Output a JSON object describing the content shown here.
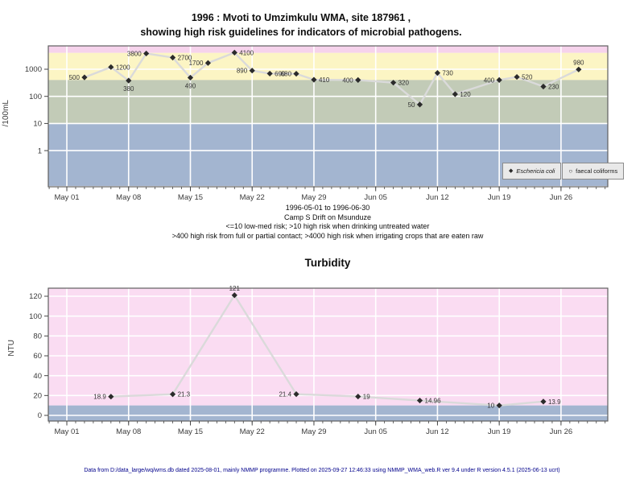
{
  "title": {
    "line1": "1996 : Mvoti to Umzimkulu WMA, site 187961 ,",
    "line2": "showing high risk guidelines for indicators of microbial pathogens."
  },
  "caption": {
    "date_range": "1996-05-01 to 1996-06-30",
    "site": "Camp S Drift on Msunduze",
    "guideline1": "<=10 low-med risk; >10 high risk when drinking untreated water",
    "guideline2": ">400 high risk from full or partial contact; >4000 high risk when irrigating crops that are eaten raw"
  },
  "footer": "Data from D:/data_large/wq/wms.db dated 2025-08-01, mainly NMMP programme. Plotted on 2025-09-27 12:46:33 using NMMP_WMA_web.R ver 9.4 under R version 4.5.1 (2025-06-13 ucrt)",
  "legend": {
    "items": [
      {
        "marker": "filled-diamond",
        "label": "Eschericia coli"
      },
      {
        "marker": "open-circle",
        "label": "faecal coliforms"
      }
    ]
  },
  "colors": {
    "band_pink": "#f6d3ec",
    "band_yellow": "#fcf5c4",
    "band_green": "#c2cbb7",
    "band_blue": "#a3b5d0",
    "turbidity_pink": "#fadcf2",
    "grid": "#ffffff",
    "line": "#dadada",
    "point": "#2b2b2b",
    "axis": "#5f5f5f",
    "tick_text": "#3a3a3a",
    "label_text": "#333333",
    "footer_text": "#00008b"
  },
  "chart_data": [
    {
      "type": "line",
      "name": "microbial-indicators",
      "title": "",
      "xlabel": "",
      "ylabel": "/100mL",
      "yscale": "log",
      "ylim": [
        0.05,
        7200
      ],
      "yticks": [
        1,
        10,
        100,
        1000
      ],
      "xlim_days": [
        -2.1,
        61.3
      ],
      "minor_ticks": "daily",
      "legend_position": "bottom-right",
      "grid": true,
      "xticks": [
        {
          "day": 0,
          "label": "May 01"
        },
        {
          "day": 7,
          "label": "May 08"
        },
        {
          "day": 14,
          "label": "May 15"
        },
        {
          "day": 21,
          "label": "May 22"
        },
        {
          "day": 28,
          "label": "May 29"
        },
        {
          "day": 35,
          "label": "Jun 05"
        },
        {
          "day": 42,
          "label": "Jun 12"
        },
        {
          "day": 49,
          "label": "Jun 19"
        },
        {
          "day": 56,
          "label": "Jun 26"
        }
      ],
      "bands": [
        {
          "from": 4000,
          "to": 7200,
          "color_key": "band_pink"
        },
        {
          "from": 400,
          "to": 4000,
          "color_key": "band_yellow"
        },
        {
          "from": 10,
          "to": 400,
          "color_key": "band_green"
        },
        {
          "from": 0.05,
          "to": 10,
          "color_key": "band_blue"
        }
      ],
      "series": [
        {
          "name": "Eschericia coli",
          "marker": "filled-diamond",
          "points": [
            {
              "day": 2,
              "value": 500,
              "label": "500",
              "label_side": "left"
            },
            {
              "day": 5,
              "value": 1200,
              "label": "1200",
              "label_side": "right"
            },
            {
              "day": 7,
              "value": 380,
              "label": "380",
              "label_side": "below"
            },
            {
              "day": 9,
              "value": 3800,
              "label": "3800",
              "label_side": "left"
            },
            {
              "day": 12,
              "value": 2700,
              "label": "2700",
              "label_side": "right"
            },
            {
              "day": 14,
              "value": 490,
              "label": "490",
              "label_side": "below"
            },
            {
              "day": 16,
              "value": 1700,
              "label": "1700",
              "label_side": "left"
            },
            {
              "day": 19,
              "value": 4100,
              "label": "4100",
              "label_side": "right"
            },
            {
              "day": 21,
              "value": 890,
              "label": "890",
              "label_side": "left"
            },
            {
              "day": 23,
              "value": 690,
              "label": "690",
              "label_side": "right"
            },
            {
              "day": 26,
              "value": 680,
              "label": "680",
              "label_side": "left"
            },
            {
              "day": 28,
              "value": 410,
              "label": "410",
              "label_side": "right"
            },
            {
              "day": 33,
              "value": 400,
              "label": "400",
              "label_side": "left"
            },
            {
              "day": 37,
              "value": 320,
              "label": "320",
              "label_side": "right"
            },
            {
              "day": 40,
              "value": 50,
              "label": "50",
              "label_side": "left"
            },
            {
              "day": 42,
              "value": 730,
              "label": "730",
              "label_side": "right"
            },
            {
              "day": 44,
              "value": 120,
              "label": "120",
              "label_side": "right"
            },
            {
              "day": 49,
              "value": 400,
              "label": "400",
              "label_side": "left"
            },
            {
              "day": 51,
              "value": 520,
              "label": "520",
              "label_side": "right"
            },
            {
              "day": 54,
              "value": 230,
              "label": "230",
              "label_side": "right"
            },
            {
              "day": 58,
              "value": 980,
              "label": "980",
              "label_side": "above"
            }
          ]
        },
        {
          "name": "faecal coliforms",
          "marker": "open-circle",
          "points": []
        }
      ]
    },
    {
      "type": "line",
      "name": "turbidity",
      "title": "Turbidity",
      "xlabel": "",
      "ylabel": "NTU",
      "yscale": "linear",
      "ylim": [
        -5.7,
        128.1
      ],
      "yticks": [
        0,
        20,
        40,
        60,
        80,
        100,
        120
      ],
      "xlim_days": [
        -2.1,
        61.3
      ],
      "minor_ticks": "daily",
      "grid": true,
      "xticks": [
        {
          "day": 0,
          "label": "May 01"
        },
        {
          "day": 7,
          "label": "May 08"
        },
        {
          "day": 14,
          "label": "May 15"
        },
        {
          "day": 21,
          "label": "May 22"
        },
        {
          "day": 28,
          "label": "May 29"
        },
        {
          "day": 35,
          "label": "Jun 05"
        },
        {
          "day": 42,
          "label": "Jun 12"
        },
        {
          "day": 49,
          "label": "Jun 19"
        },
        {
          "day": 56,
          "label": "Jun 26"
        }
      ],
      "bands": [
        {
          "from": 10,
          "to": 128.1,
          "color_key": "turbidity_pink"
        },
        {
          "from": -5.7,
          "to": 10,
          "color_key": "band_blue"
        }
      ],
      "series": [
        {
          "name": "Turbidity",
          "marker": "filled-diamond",
          "points": [
            {
              "day": 5,
              "value": 18.9,
              "label": "18.9",
              "label_side": "left"
            },
            {
              "day": 12,
              "value": 21.3,
              "label": "21.3",
              "label_side": "right"
            },
            {
              "day": 19,
              "value": 121,
              "label": "121",
              "label_side": "above"
            },
            {
              "day": 26,
              "value": 21.4,
              "label": "21.4",
              "label_side": "left"
            },
            {
              "day": 33,
              "value": 19,
              "label": "19",
              "label_side": "right"
            },
            {
              "day": 40,
              "value": 14.96,
              "label": "14.96",
              "label_side": "right"
            },
            {
              "day": 49,
              "value": 10,
              "label": "10",
              "label_side": "left"
            },
            {
              "day": 54,
              "value": 13.9,
              "label": "13.9",
              "label_side": "right"
            }
          ]
        }
      ]
    }
  ]
}
